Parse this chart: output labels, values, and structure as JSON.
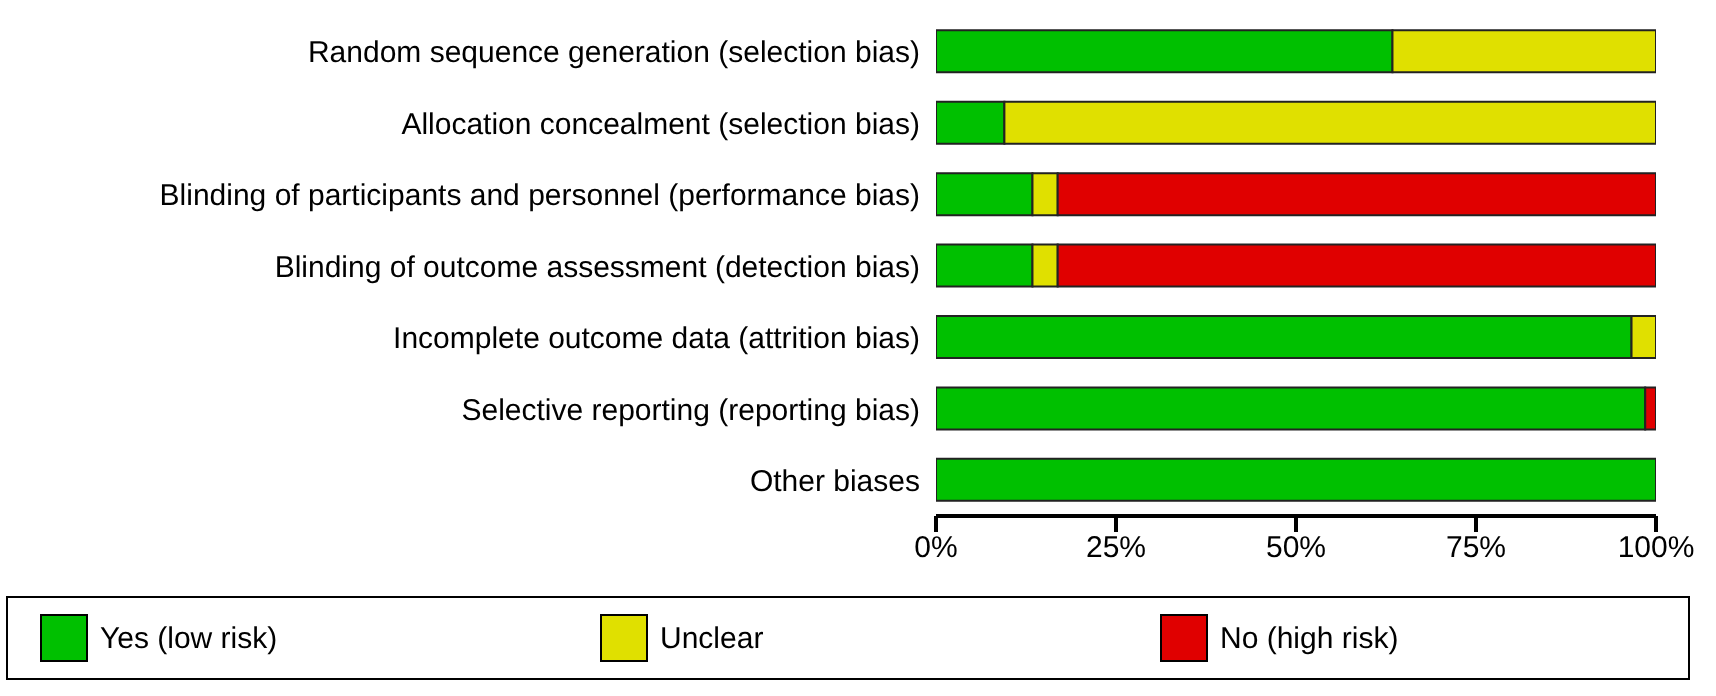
{
  "chart_data": {
    "type": "bar",
    "orientation": "horizontal",
    "stacked": true,
    "legend": "bottom",
    "categories": [
      "Random sequence generation (selection bias)",
      "Allocation concealment (selection bias)",
      "Blinding of participants and personnel (performance bias)",
      "Blinding of outcome assessment (detection bias)",
      "Incomplete outcome data (attrition bias)",
      "Selective reporting (reporting bias)",
      "Other biases"
    ],
    "series": [
      {
        "name": "Yes (low risk)",
        "color": "#00c000",
        "values": [
          63.4,
          9.5,
          13.4,
          13.4,
          96.6,
          98.5,
          100
        ]
      },
      {
        "name": "Unclear",
        "color": "#e0e000",
        "values": [
          36.6,
          90.5,
          3.5,
          3.5,
          3.4,
          0,
          0
        ]
      },
      {
        "name": "No (high risk)",
        "color": "#e00000",
        "values": [
          0,
          0,
          83.1,
          83.1,
          0,
          1.5,
          0
        ]
      }
    ],
    "xlim": [
      0,
      100
    ],
    "xticks": [
      {
        "value": 0,
        "label": "0%"
      },
      {
        "value": 25,
        "label": "25%"
      },
      {
        "value": 50,
        "label": "50%"
      },
      {
        "value": 75,
        "label": "75%"
      },
      {
        "value": 100,
        "label": "100%"
      }
    ]
  }
}
